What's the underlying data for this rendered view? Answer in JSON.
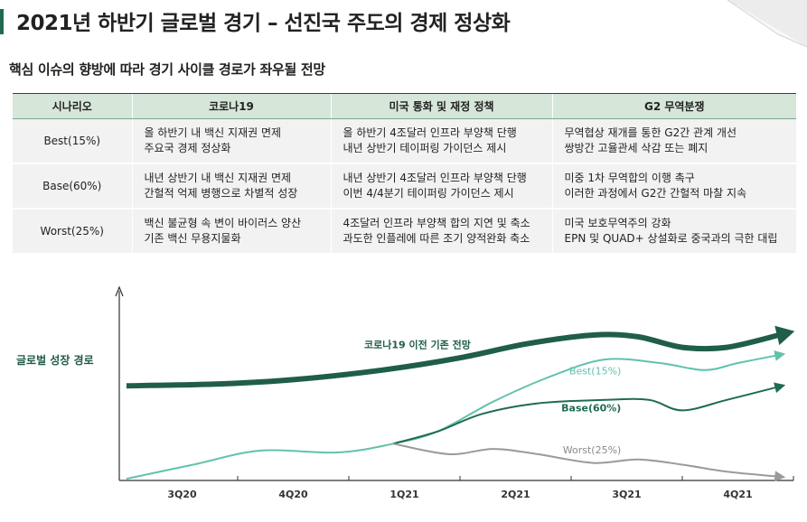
{
  "page": {
    "title": "2021년 하반기 글로벌 경기 – 선진국 주도의 경제 정상화",
    "subtitle": "핵심 이슈의 향방에 따라 경기 사이클 경로가 좌우될 전망"
  },
  "table": {
    "headers": [
      "시나리오",
      "코로나19",
      "미국 통화 및 재정 정책",
      "G2 무역분쟁"
    ],
    "rows": [
      {
        "scenario": "Best(15%)",
        "covid": [
          "올 하반기 내 백신 지재권 면제",
          "주요국 경제 정상화"
        ],
        "policy": [
          "올 하반기 4조달러 인프라 부양책 단행",
          "내년 상반기 테이퍼링 가이던스 제시"
        ],
        "trade": [
          "무역협상 재개를 통한 G2간 관계 개선",
          "쌍방간 고율관세 삭감 또는 폐지"
        ]
      },
      {
        "scenario": "Base(60%)",
        "covid": [
          "내년 상반기 내 백신 지재권 면제",
          "간헐적 억제 병행으로 차별적 성장"
        ],
        "policy": [
          "내년 상반기 4조달러 인프라 부양책 단행",
          "이번 4/4분기 테이퍼링 가이던스 제시"
        ],
        "trade": [
          "미중 1차 무역합의 이행 촉구",
          "이러한 과정에서 G2간 간헐적 마찰 지속"
        ]
      },
      {
        "scenario": "Worst(25%)",
        "covid": [
          "백신 불균형 속 변이 바이러스 양산",
          "기존 백신 무용지물화"
        ],
        "policy": [
          "4조달러 인프라 부양책 합의 지연 및 축소",
          "과도한 인플레에 따른 조기 양적완화 축소"
        ],
        "trade": [
          "미국 보호무역주의 강화",
          "EPN 및 QUAD+ 상설화로 중국과의 극한 대립"
        ]
      }
    ]
  },
  "chart_data": {
    "type": "line",
    "ylabel": "글로벌 성장 경로",
    "xlabel": "",
    "categories": [
      "3Q20",
      "4Q20",
      "1Q21",
      "2Q21",
      "3Q21",
      "4Q21"
    ],
    "x_range": [
      0,
      6
    ],
    "ylim": [
      0,
      10
    ],
    "annotation": "코로나19 이전 기존 전망",
    "series": [
      {
        "name": "코로나19 이전 기존 전망",
        "color": "#1f5e48",
        "style": "thick-arrow",
        "points": [
          [
            0,
            5.4
          ],
          [
            0.8,
            5.5
          ],
          [
            1.5,
            5.75
          ],
          [
            2.3,
            6.3
          ],
          [
            3.0,
            7.0
          ],
          [
            3.6,
            7.8
          ],
          [
            4.2,
            8.3
          ],
          [
            4.6,
            8.2
          ],
          [
            5.0,
            7.6
          ],
          [
            5.4,
            7.6
          ],
          [
            5.9,
            8.35
          ]
        ]
      },
      {
        "name": "Best(15%)",
        "color": "#62c1ad",
        "style": "thin-arrow",
        "points": [
          [
            0,
            0.1
          ],
          [
            0.6,
            0.9
          ],
          [
            1.2,
            1.7
          ],
          [
            1.9,
            1.6
          ],
          [
            2.4,
            2.1
          ],
          [
            2.8,
            2.8
          ],
          [
            3.3,
            4.5
          ],
          [
            3.8,
            5.9
          ],
          [
            4.3,
            6.9
          ],
          [
            4.8,
            6.7
          ],
          [
            5.2,
            6.3
          ],
          [
            5.5,
            6.7
          ],
          [
            5.9,
            7.2
          ]
        ]
      },
      {
        "name": "Base(60%)",
        "color": "#1f6b52",
        "style": "thin-arrow",
        "points": [
          [
            2.4,
            2.1
          ],
          [
            2.8,
            2.8
          ],
          [
            3.2,
            3.8
          ],
          [
            3.7,
            4.4
          ],
          [
            4.3,
            4.6
          ],
          [
            4.7,
            4.6
          ],
          [
            5.0,
            4.0
          ],
          [
            5.4,
            4.6
          ],
          [
            5.9,
            5.4
          ]
        ]
      },
      {
        "name": "Worst(25%)",
        "color": "#9a9a9a",
        "style": "thin-arrow",
        "points": [
          [
            2.4,
            2.1
          ],
          [
            2.9,
            1.5
          ],
          [
            3.3,
            1.8
          ],
          [
            3.7,
            1.5
          ],
          [
            4.2,
            1.0
          ],
          [
            4.6,
            1.2
          ],
          [
            5.0,
            0.9
          ],
          [
            5.4,
            0.5
          ],
          [
            5.9,
            0.2
          ]
        ]
      }
    ]
  }
}
